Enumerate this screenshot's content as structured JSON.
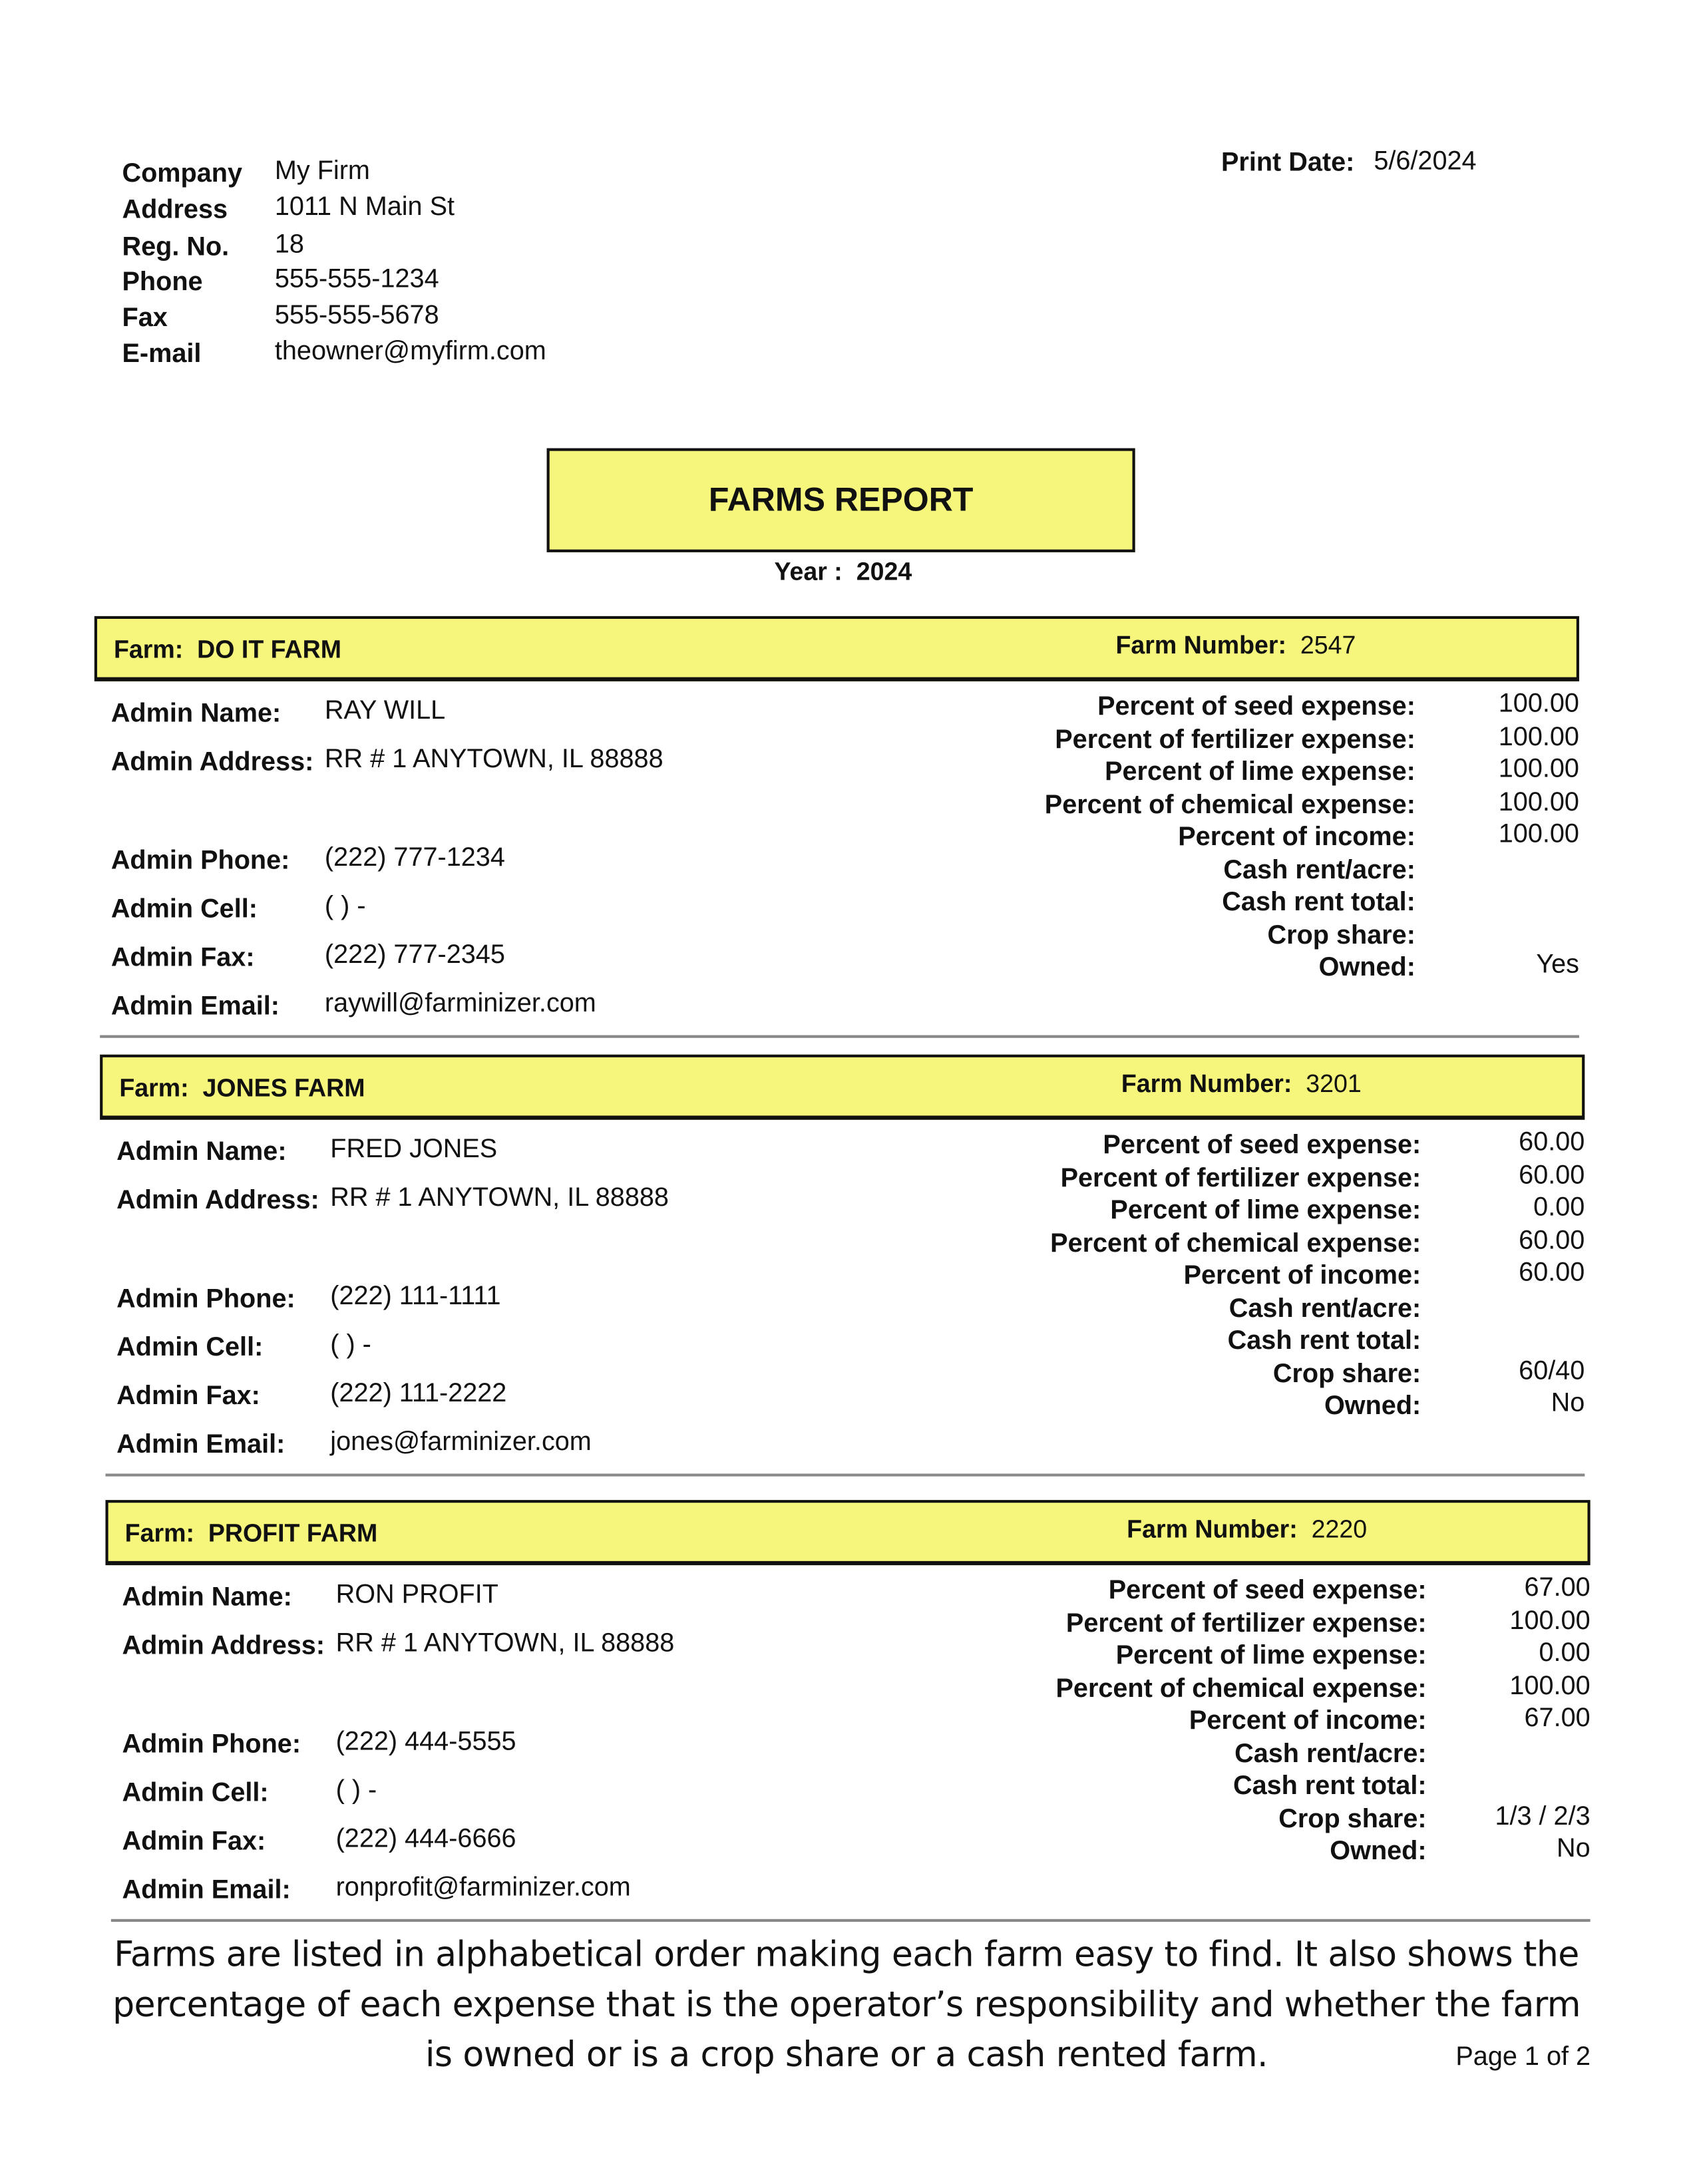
{
  "company": {
    "labels": [
      "Company",
      "Address",
      "Reg. No.",
      "Phone",
      "Fax",
      "E-mail"
    ],
    "values": [
      "My Firm",
      "1011 N Main St",
      "18",
      "555-555-1234",
      "555-555-5678",
      "theowner@myfirm.com"
    ]
  },
  "print_date": {
    "label": "Print Date:",
    "value": "5/6/2024"
  },
  "report": {
    "title": "FARMS REPORT",
    "year_label": "Year :",
    "year": "2024"
  },
  "labels": {
    "farm": "Farm:",
    "farm_number": "Farm Number:",
    "left": [
      "Admin Name:",
      "Admin Address:",
      "Admin Phone:",
      "Admin Cell:",
      "Admin Fax:",
      "Admin Email:"
    ],
    "right": [
      "Percent of seed expense:",
      "Percent of fertilizer expense:",
      "Percent of lime expense:",
      "Percent of chemical expense:",
      "Percent of income:",
      "Cash rent/acre:",
      "Cash rent total:",
      "Crop share:",
      "Owned:"
    ]
  },
  "highlight_color": "#f6f67c",
  "farms": [
    {
      "name": "DO IT FARM",
      "number": "2547",
      "left": [
        "RAY WILL",
        "RR # 1 ANYTOWN, IL 88888",
        "(222) 777-1234",
        "(  )   -",
        "(222) 777-2345",
        "raywill@farminizer.com"
      ],
      "right": [
        "100.00",
        "100.00",
        "100.00",
        "100.00",
        "100.00",
        "",
        "",
        "",
        "Yes"
      ]
    },
    {
      "name": "JONES FARM",
      "number": "3201",
      "left": [
        "FRED JONES",
        "RR # 1 ANYTOWN, IL 88888",
        "(222) 111-1111",
        "(  )   -",
        "(222) 111-2222",
        "jones@farminizer.com"
      ],
      "right": [
        "60.00",
        "60.00",
        "0.00",
        "60.00",
        "60.00",
        "",
        "",
        "60/40",
        "No"
      ]
    },
    {
      "name": "PROFIT FARM",
      "number": "2220",
      "left": [
        "RON PROFIT",
        "RR # 1 ANYTOWN, IL 88888",
        "(222) 444-5555",
        "(  )   -",
        "(222) 444-6666",
        "ronprofit@farminizer.com"
      ],
      "right": [
        "67.00",
        "100.00",
        "0.00",
        "100.00",
        "67.00",
        "",
        "",
        "1/3 / 2/3",
        "No"
      ]
    }
  ],
  "footer": {
    "lines": [
      "Farms are listed in alphabetical order making each farm easy to find.  It also shows the",
      "percentage of each expense that is the operator’s responsibility and whether the farm",
      "is owned or is a crop share or a cash rented farm."
    ],
    "page": "Page 1 of 2"
  }
}
